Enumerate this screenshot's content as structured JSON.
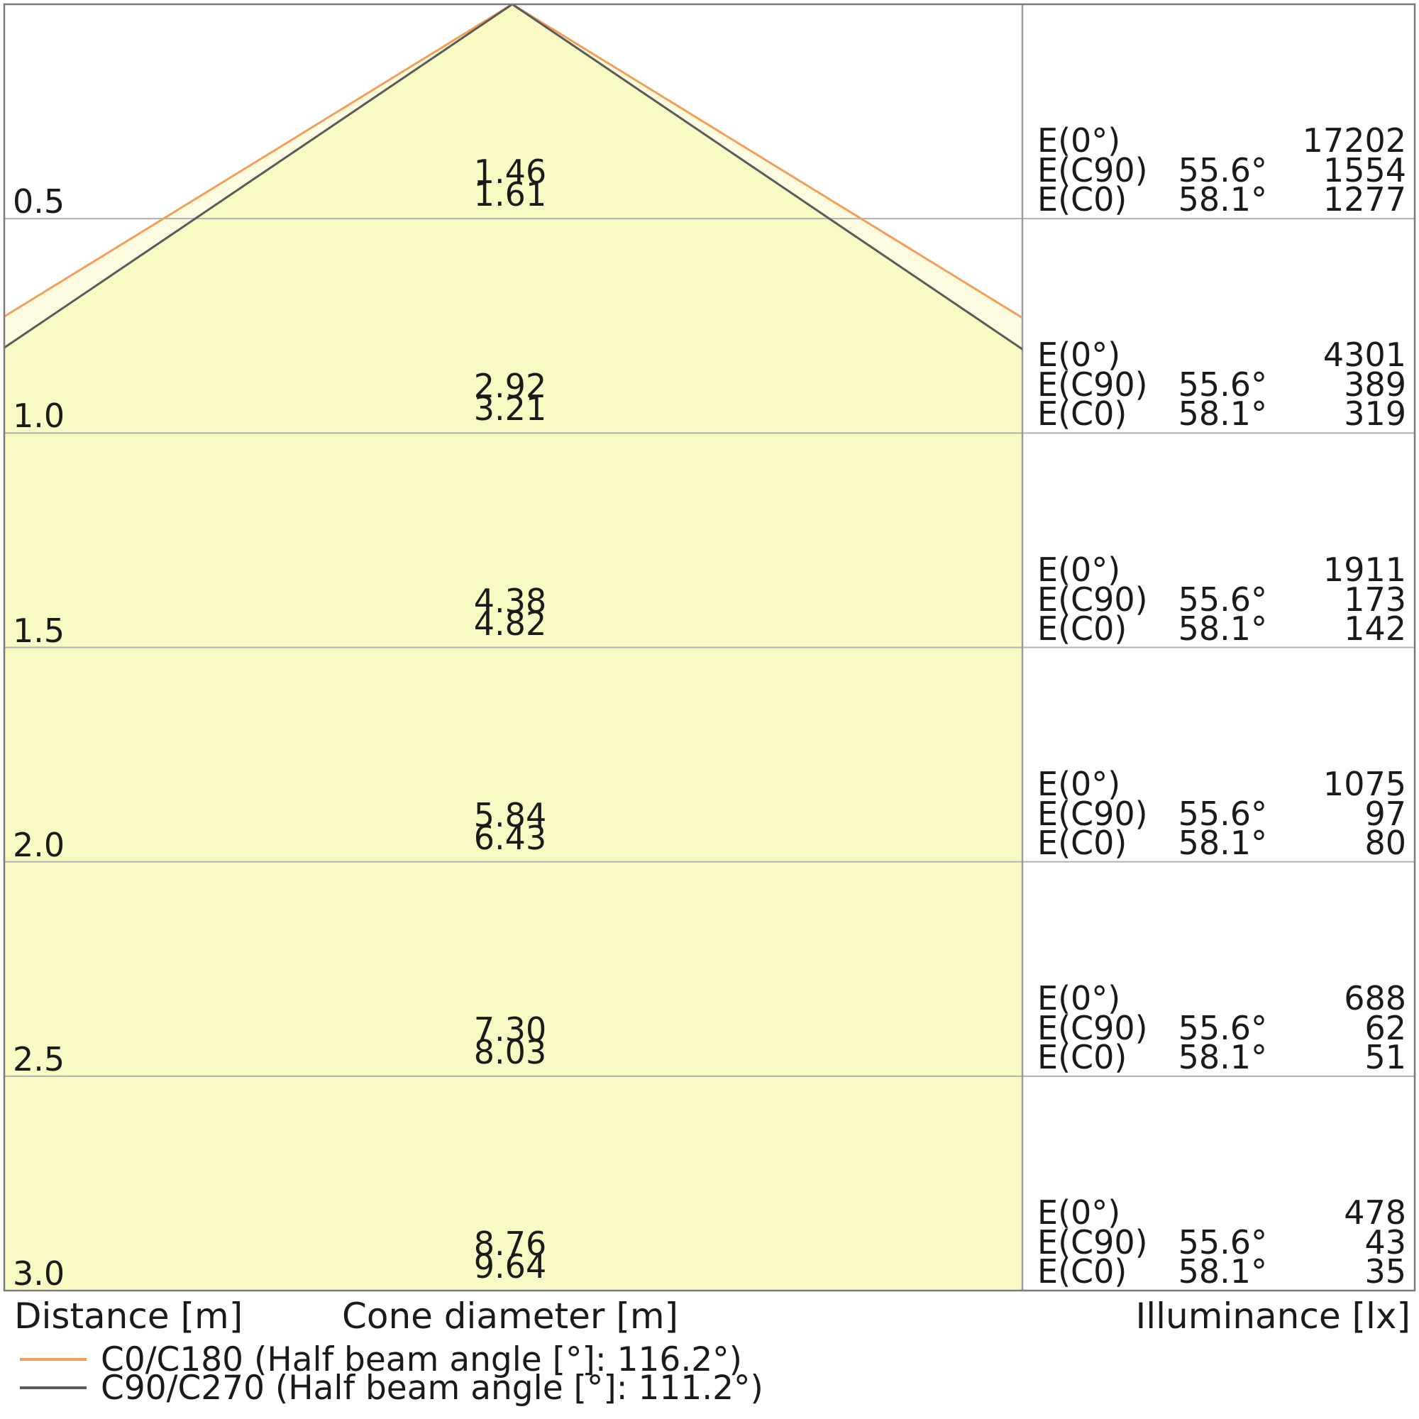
{
  "chart_data": {
    "type": "area",
    "subtype": "luminaire-cone-diagram",
    "title": "",
    "axes": {
      "distance_label": "Distance [m]",
      "cone_diameter_label": "Cone diameter [m]",
      "illuminance_label": "Illuminance [lx]"
    },
    "distance_tick_labels": [
      "0.5",
      "1.0",
      "1.5",
      "2.0",
      "2.5",
      "3.0"
    ],
    "distances_m": [
      0.5,
      1.0,
      1.5,
      2.0,
      2.5,
      3.0
    ],
    "series": [
      {
        "name": "C0/C180",
        "half_beam_angle_deg": 116.2,
        "half_angle_deg": 58.1,
        "color": "#F59E58",
        "cone_diameters_m": [
          "1.61",
          "3.21",
          "4.82",
          "6.43",
          "8.03",
          "9.64"
        ]
      },
      {
        "name": "C90/C270",
        "half_beam_angle_deg": 111.2,
        "half_angle_deg": 55.6,
        "color": "#5A5A5A",
        "cone_diameters_m": [
          "1.46",
          "2.92",
          "4.38",
          "5.84",
          "7.30",
          "8.76"
        ]
      }
    ],
    "legend": [
      {
        "label": "C0/C180 (Half beam angle [°]: 116.2°)",
        "color": "#F59E58"
      },
      {
        "label": "C90/C270 (Half beam angle [°]: 111.2°)",
        "color": "#5A5A5A"
      }
    ],
    "illuminance_table": {
      "row_labels": [
        "E(0°)",
        "E(C90)",
        "E(C0)"
      ],
      "angles": [
        "",
        "55.6°",
        "58.1°"
      ],
      "rows": [
        [
          17202,
          1554,
          1277
        ],
        [
          4301,
          389,
          319
        ],
        [
          1911,
          173,
          142
        ],
        [
          1075,
          97,
          80
        ],
        [
          688,
          62,
          51
        ],
        [
          478,
          43,
          35
        ]
      ]
    }
  },
  "colors": {
    "background": "#FFFFFF",
    "cone_fill": "#F9F9C4",
    "cone_band_fill": "#FCFBE0",
    "c0_line": "#F59E58",
    "c90_line": "#5A5A5A",
    "grid_line": "#B0B0B0",
    "divider": "#9A9A9A",
    "border": "#7A7A7A",
    "text": "#1A1A1A"
  }
}
